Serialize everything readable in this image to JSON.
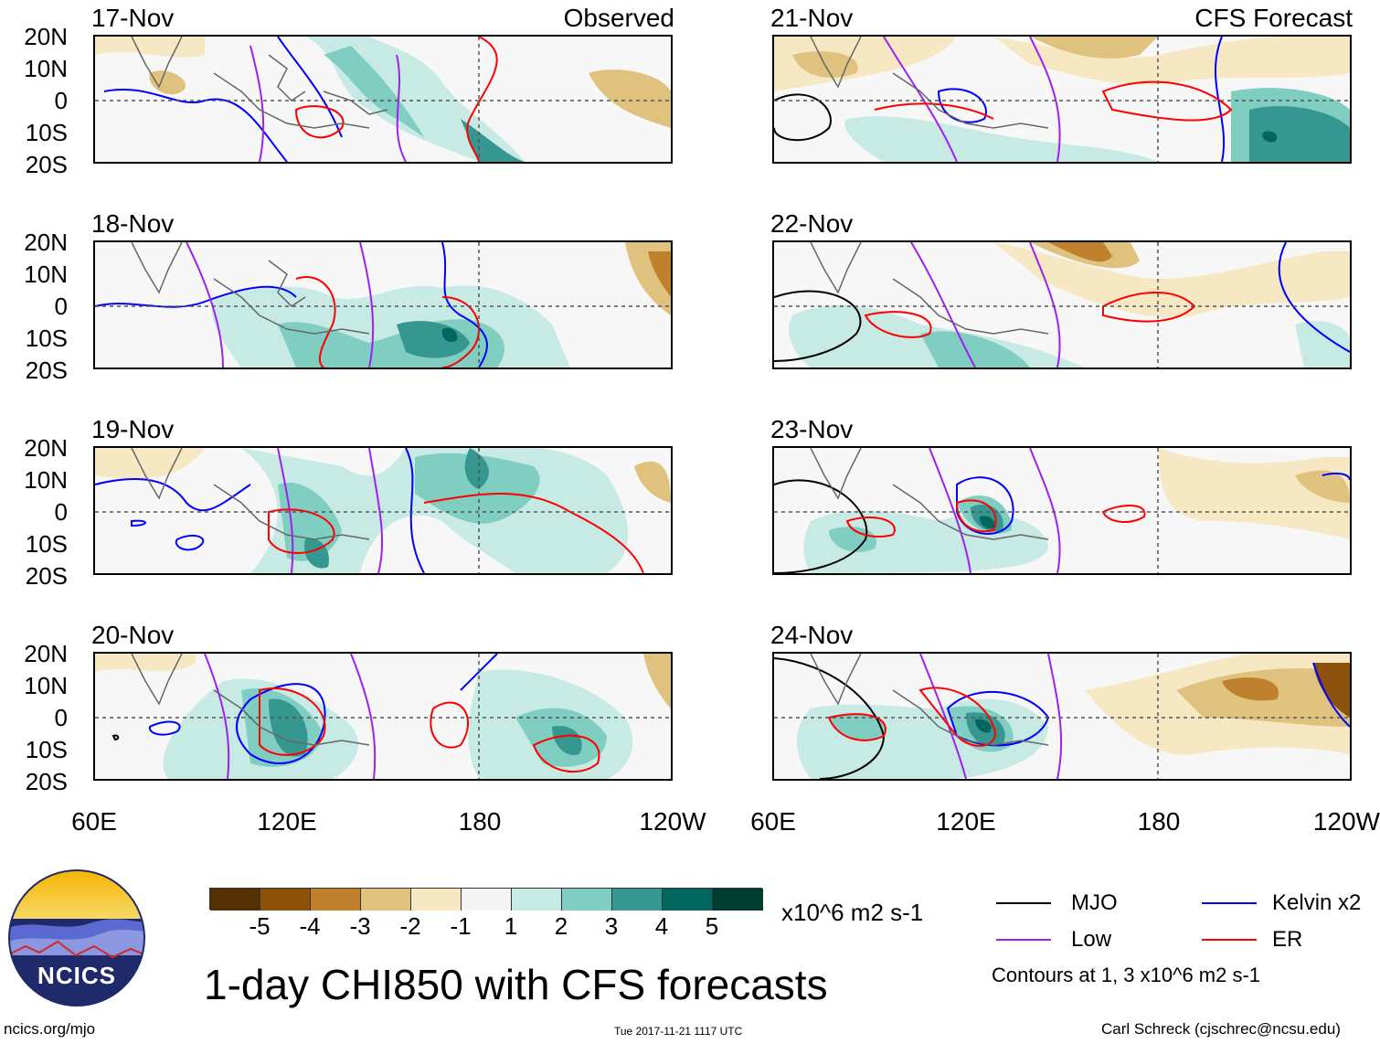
{
  "header": {
    "observed_label": "Observed",
    "forecast_label": "CFS Forecast"
  },
  "lat_labels": [
    "20N",
    "10N",
    "0",
    "10S",
    "20S"
  ],
  "lon_labels": [
    "60E",
    "120E",
    "180",
    "120W"
  ],
  "panels": [
    {
      "date": "17-Nov",
      "type": "observed"
    },
    {
      "date": "18-Nov",
      "type": "observed"
    },
    {
      "date": "19-Nov",
      "type": "observed"
    },
    {
      "date": "20-Nov",
      "type": "observed"
    },
    {
      "date": "21-Nov",
      "type": "forecast"
    },
    {
      "date": "22-Nov",
      "type": "forecast"
    },
    {
      "date": "23-Nov",
      "type": "forecast"
    },
    {
      "date": "24-Nov",
      "type": "forecast"
    }
  ],
  "colorbar": {
    "ticks": [
      "-5",
      "-4",
      "-3",
      "-2",
      "-1",
      "1",
      "2",
      "3",
      "4",
      "5"
    ],
    "colors": [
      "#543005",
      "#8c510a",
      "#bf812d",
      "#dfc27d",
      "#f6e8c3",
      "#f5f5f5",
      "#c7eae5",
      "#80cdc1",
      "#35978f",
      "#01665e",
      "#003c30"
    ],
    "units": "x10^6 m2 s-1"
  },
  "title": "1-day CHI850 with CFS forecasts",
  "legend": {
    "items": [
      {
        "label": "MJO",
        "color": "#000000"
      },
      {
        "label": "Kelvin x2",
        "color": "#0000ff"
      },
      {
        "label": "Low",
        "color": "#a020f0"
      },
      {
        "label": "ER",
        "color": "#ff0000"
      }
    ],
    "contours_note": "Contours at 1, 3 x10^6 m2 s-1"
  },
  "logo": {
    "text": "NCICS"
  },
  "footer": {
    "site": "ncics.org/mjo",
    "timestamp": "Tue 2017-11-21 1117 UTC",
    "author": "Carl Schreck (cjschrec@ncsu.edu)"
  }
}
